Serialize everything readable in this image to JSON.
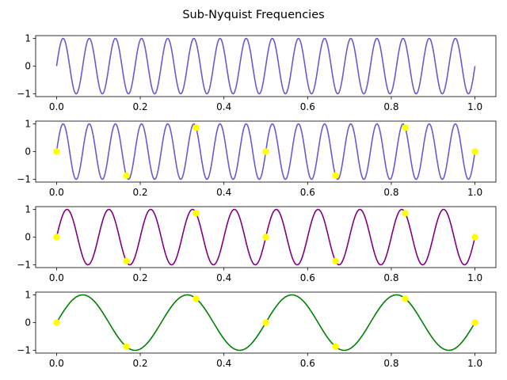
{
  "title": "Sub-Nyquist Frequencies",
  "chart_data": [
    {
      "type": "line",
      "title": "",
      "xlabel": "",
      "ylabel": "",
      "xlim": [
        -0.05,
        1.05
      ],
      "ylim": [
        -1.1,
        1.1
      ],
      "xticks": [
        0.0,
        0.2,
        0.4,
        0.6,
        0.8,
        1.0
      ],
      "xtick_labels": [
        "0.0",
        "0.2",
        "0.4",
        "0.6",
        "0.8",
        "1.0"
      ],
      "yticks": [
        1,
        0,
        -1
      ],
      "ytick_labels": [
        "1",
        "0",
        "−1"
      ],
      "grid": false,
      "series": [
        {
          "kind": "line",
          "function": "sin(2*pi*f*x)",
          "frequency": 16,
          "x_range": [
            0,
            1
          ],
          "color": "#6a5acd"
        }
      ]
    },
    {
      "type": "line",
      "title": "",
      "xlabel": "",
      "ylabel": "",
      "xlim": [
        -0.05,
        1.05
      ],
      "ylim": [
        -1.1,
        1.1
      ],
      "xticks": [
        0.0,
        0.2,
        0.4,
        0.6,
        0.8,
        1.0
      ],
      "xtick_labels": [
        "0.0",
        "0.2",
        "0.4",
        "0.6",
        "0.8",
        "1.0"
      ],
      "yticks": [
        1,
        0,
        -1
      ],
      "ytick_labels": [
        "1",
        "0",
        "−1"
      ],
      "grid": false,
      "series": [
        {
          "kind": "line",
          "function": "sin(2*pi*f*x)",
          "frequency": 16,
          "x_range": [
            0,
            1
          ],
          "color": "#6a5acd"
        },
        {
          "kind": "scatter",
          "color": "#ffff00",
          "x": [
            0.0,
            0.1667,
            0.3333,
            0.5,
            0.6667,
            0.8333,
            1.0
          ],
          "y": [
            0.0,
            -0.866,
            0.866,
            0.0,
            -0.866,
            0.866,
            0.0
          ]
        }
      ]
    },
    {
      "type": "line",
      "title": "",
      "xlabel": "",
      "ylabel": "",
      "xlim": [
        -0.05,
        1.05
      ],
      "ylim": [
        -1.1,
        1.1
      ],
      "xticks": [
        0.0,
        0.2,
        0.4,
        0.6,
        0.8,
        1.0
      ],
      "xtick_labels": [
        "0.0",
        "0.2",
        "0.4",
        "0.6",
        "0.8",
        "1.0"
      ],
      "yticks": [
        1,
        0,
        -1
      ],
      "ytick_labels": [
        "1",
        "0",
        "−1"
      ],
      "grid": false,
      "series": [
        {
          "kind": "line",
          "function": "sin(2*pi*f*x)",
          "frequency": 10,
          "x_range": [
            0,
            1
          ],
          "color": "#800080"
        },
        {
          "kind": "scatter",
          "color": "#ffff00",
          "x": [
            0.0,
            0.1667,
            0.3333,
            0.5,
            0.6667,
            0.8333,
            1.0
          ],
          "y": [
            0.0,
            -0.866,
            0.866,
            0.0,
            -0.866,
            0.866,
            0.0
          ]
        }
      ]
    },
    {
      "type": "line",
      "title": "",
      "xlabel": "",
      "ylabel": "",
      "xlim": [
        -0.05,
        1.05
      ],
      "ylim": [
        -1.1,
        1.1
      ],
      "xticks": [
        0.0,
        0.2,
        0.4,
        0.6,
        0.8,
        1.0
      ],
      "xtick_labels": [
        "0.0",
        "0.2",
        "0.4",
        "0.6",
        "0.8",
        "1.0"
      ],
      "yticks": [
        1,
        0,
        -1
      ],
      "ytick_labels": [
        "1",
        "0",
        "−1"
      ],
      "grid": false,
      "series": [
        {
          "kind": "line",
          "function": "sin(2*pi*f*x)",
          "frequency": 4,
          "x_range": [
            0,
            1
          ],
          "color": "#008000"
        },
        {
          "kind": "scatter",
          "color": "#ffff00",
          "x": [
            0.0,
            0.1667,
            0.3333,
            0.5,
            0.6667,
            0.8333,
            1.0
          ],
          "y": [
            0.0,
            -0.866,
            0.866,
            0.0,
            -0.866,
            0.866,
            0.0
          ]
        }
      ]
    }
  ]
}
